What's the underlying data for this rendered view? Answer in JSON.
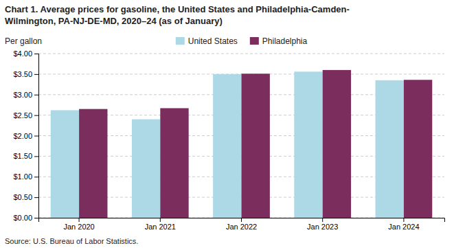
{
  "chart_data": {
    "type": "bar",
    "title": "Chart 1. Average prices for gasoline, the United States and Philadelphia-Camden-\nWilmington, PA-NJ-DE-MD, 2020–24 (as of January)",
    "y_label": "Per gallon",
    "annotations": [
      "Source: U.S. Bureau of Labor Statistics."
    ],
    "categories": [
      "Jan 2020",
      "Jan 2021",
      "Jan 2022",
      "Jan 2023",
      "Jan 2024"
    ],
    "series": [
      {
        "name": "United States",
        "color": "#ADD8E6",
        "values": [
          2.62,
          2.4,
          3.5,
          3.56,
          3.35
        ]
      },
      {
        "name": "Philadelphia",
        "color": "#7B2D5E",
        "values": [
          2.65,
          2.67,
          3.51,
          3.6,
          3.36
        ]
      }
    ],
    "ylim": [
      0,
      4.0
    ],
    "yticks": [
      {
        "value": 0.0,
        "label": "$0.00"
      },
      {
        "value": 0.5,
        "label": "$0.50"
      },
      {
        "value": 1.0,
        "label": "$1.00"
      },
      {
        "value": 1.5,
        "label": "$1.50"
      },
      {
        "value": 2.0,
        "label": "$2.00"
      },
      {
        "value": 2.5,
        "label": "$2.50"
      },
      {
        "value": 3.0,
        "label": "$3.00"
      },
      {
        "value": 3.5,
        "label": "$3.50"
      },
      {
        "value": 4.0,
        "label": "$4.00"
      }
    ],
    "grid": true,
    "legend": "top"
  }
}
